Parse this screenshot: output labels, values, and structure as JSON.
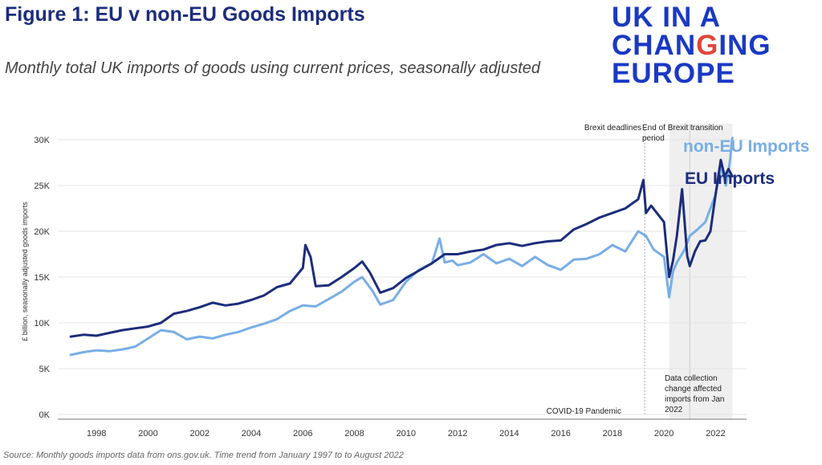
{
  "title": "Figure 1: EU v non-EU Goods Imports",
  "subtitle": "Monthly total UK imports of goods using current prices, seasonally adjusted",
  "logo": {
    "line1": "UK IN A",
    "line2_a": "CHAN",
    "line2_b": "G",
    "line2_c": "ING",
    "line3": "EUROPE"
  },
  "source": "Source: Monthly goods imports data from ons.gov.uk. Time trend from January 1997 to to August 2022",
  "colors": {
    "eu": "#1c2d7c",
    "non_eu": "#78aee6",
    "shade": "#efefef",
    "logo_blue": "#1a39c4",
    "logo_red": "#e0463b"
  },
  "chart_data": {
    "type": "line",
    "ylabel": "£ billion, seasonally adjusted goods imports",
    "xlabel": "",
    "ylim": [
      0,
      30000
    ],
    "xlim": [
      1996.5,
      2023.2
    ],
    "yticks": [
      0,
      5000,
      10000,
      15000,
      20000,
      25000,
      30000
    ],
    "ytick_labels": [
      "0K",
      "5K",
      "10K",
      "15K",
      "20K",
      "25K",
      "30K"
    ],
    "xticks": [
      1998,
      2000,
      2002,
      2004,
      2006,
      2008,
      2010,
      2012,
      2014,
      2016,
      2018,
      2020,
      2022
    ],
    "xtick_labels": [
      "1998",
      "2000",
      "2002",
      "2004",
      "2006",
      "2008",
      "2010",
      "2012",
      "2014",
      "2016",
      "2018",
      "2020",
      "2022"
    ],
    "grid": "horizontal",
    "legend": "right",
    "series": [
      {
        "name": "non-EU Imports",
        "color": "#78aee6",
        "x": [
          1997.0,
          1997.5,
          1998.0,
          1998.5,
          1999.0,
          1999.5,
          2000.0,
          2000.5,
          2001.0,
          2001.5,
          2002.0,
          2002.5,
          2003.0,
          2003.5,
          2004.0,
          2004.5,
          2005.0,
          2005.5,
          2006.0,
          2006.5,
          2007.0,
          2007.5,
          2008.0,
          2008.3,
          2008.7,
          2009.0,
          2009.5,
          2010.0,
          2010.5,
          2011.0,
          2011.3,
          2011.5,
          2011.8,
          2012.0,
          2012.5,
          2013.0,
          2013.5,
          2014.0,
          2014.5,
          2015.0,
          2015.5,
          2016.0,
          2016.5,
          2017.0,
          2017.5,
          2018.0,
          2018.5,
          2019.0,
          2019.3,
          2019.6,
          2020.0,
          2020.2,
          2020.35,
          2020.5,
          2020.8,
          2021.0,
          2021.3,
          2021.6,
          2022.0,
          2022.2,
          2022.4,
          2022.55,
          2022.65
        ],
        "values": [
          6500,
          6800,
          7000,
          6900,
          7100,
          7400,
          8300,
          9200,
          9000,
          8200,
          8500,
          8300,
          8700,
          9000,
          9500,
          9900,
          10400,
          11300,
          11900,
          11800,
          12600,
          13400,
          14500,
          15000,
          13500,
          12000,
          12500,
          14500,
          15800,
          16500,
          19200,
          16600,
          16800,
          16300,
          16600,
          17500,
          16500,
          17000,
          16200,
          17200,
          16300,
          15800,
          16900,
          17000,
          17500,
          18500,
          17800,
          20000,
          19500,
          18000,
          17200,
          12800,
          15600,
          16600,
          18000,
          19500,
          20200,
          21000,
          24000,
          27000,
          25000,
          27500,
          30200
        ]
      },
      {
        "name": "EU Imports",
        "color": "#1c2d7c",
        "x": [
          1997.0,
          1997.5,
          1998.0,
          1998.5,
          1999.0,
          1999.5,
          2000.0,
          2000.5,
          2001.0,
          2001.5,
          2002.0,
          2002.5,
          2003.0,
          2003.5,
          2004.0,
          2004.5,
          2005.0,
          2005.5,
          2006.0,
          2006.1,
          2006.3,
          2006.5,
          2007.0,
          2007.5,
          2008.0,
          2008.3,
          2008.6,
          2009.0,
          2009.5,
          2010.0,
          2010.5,
          2011.0,
          2011.5,
          2012.0,
          2012.5,
          2013.0,
          2013.5,
          2014.0,
          2014.5,
          2015.0,
          2015.5,
          2016.0,
          2016.5,
          2017.0,
          2017.5,
          2018.0,
          2018.5,
          2019.0,
          2019.2,
          2019.3,
          2019.5,
          2020.0,
          2020.2,
          2020.35,
          2020.5,
          2020.7,
          2020.9,
          2021.0,
          2021.2,
          2021.4,
          2021.6,
          2021.8,
          2022.0,
          2022.2,
          2022.35,
          2022.5,
          2022.65
        ],
        "values": [
          8500,
          8700,
          8600,
          8900,
          9200,
          9400,
          9600,
          10000,
          11000,
          11300,
          11700,
          12200,
          11900,
          12100,
          12500,
          13000,
          13900,
          14300,
          16000,
          18500,
          17200,
          14000,
          14100,
          15000,
          16000,
          16700,
          15500,
          13300,
          13800,
          14900,
          15700,
          16500,
          17500,
          17500,
          17800,
          18000,
          18500,
          18700,
          18400,
          18700,
          18900,
          19000,
          20200,
          20800,
          21500,
          22000,
          22500,
          23500,
          25600,
          22000,
          22800,
          21000,
          15000,
          16800,
          19500,
          24600,
          17300,
          16200,
          17800,
          18900,
          19000,
          20000,
          24000,
          27800,
          26000,
          26800,
          26000
        ]
      }
    ],
    "annotations": [
      {
        "text": "Brexit deadlines",
        "x": 2019.25
      },
      {
        "text_lines": [
          "End of Brexit transition",
          "period"
        ],
        "x": 2020.95
      },
      {
        "text": "COVID-19 Pandemic",
        "x": 2020.2
      },
      {
        "text_lines": [
          "Data collection",
          "change affected",
          "imports from Jan",
          "2022"
        ],
        "x": 2022.0
      }
    ],
    "shaded_region": {
      "from": 2020.2,
      "to": 2022.65
    },
    "legend_entries": [
      "non-EU Imports",
      "EU Imports"
    ]
  }
}
